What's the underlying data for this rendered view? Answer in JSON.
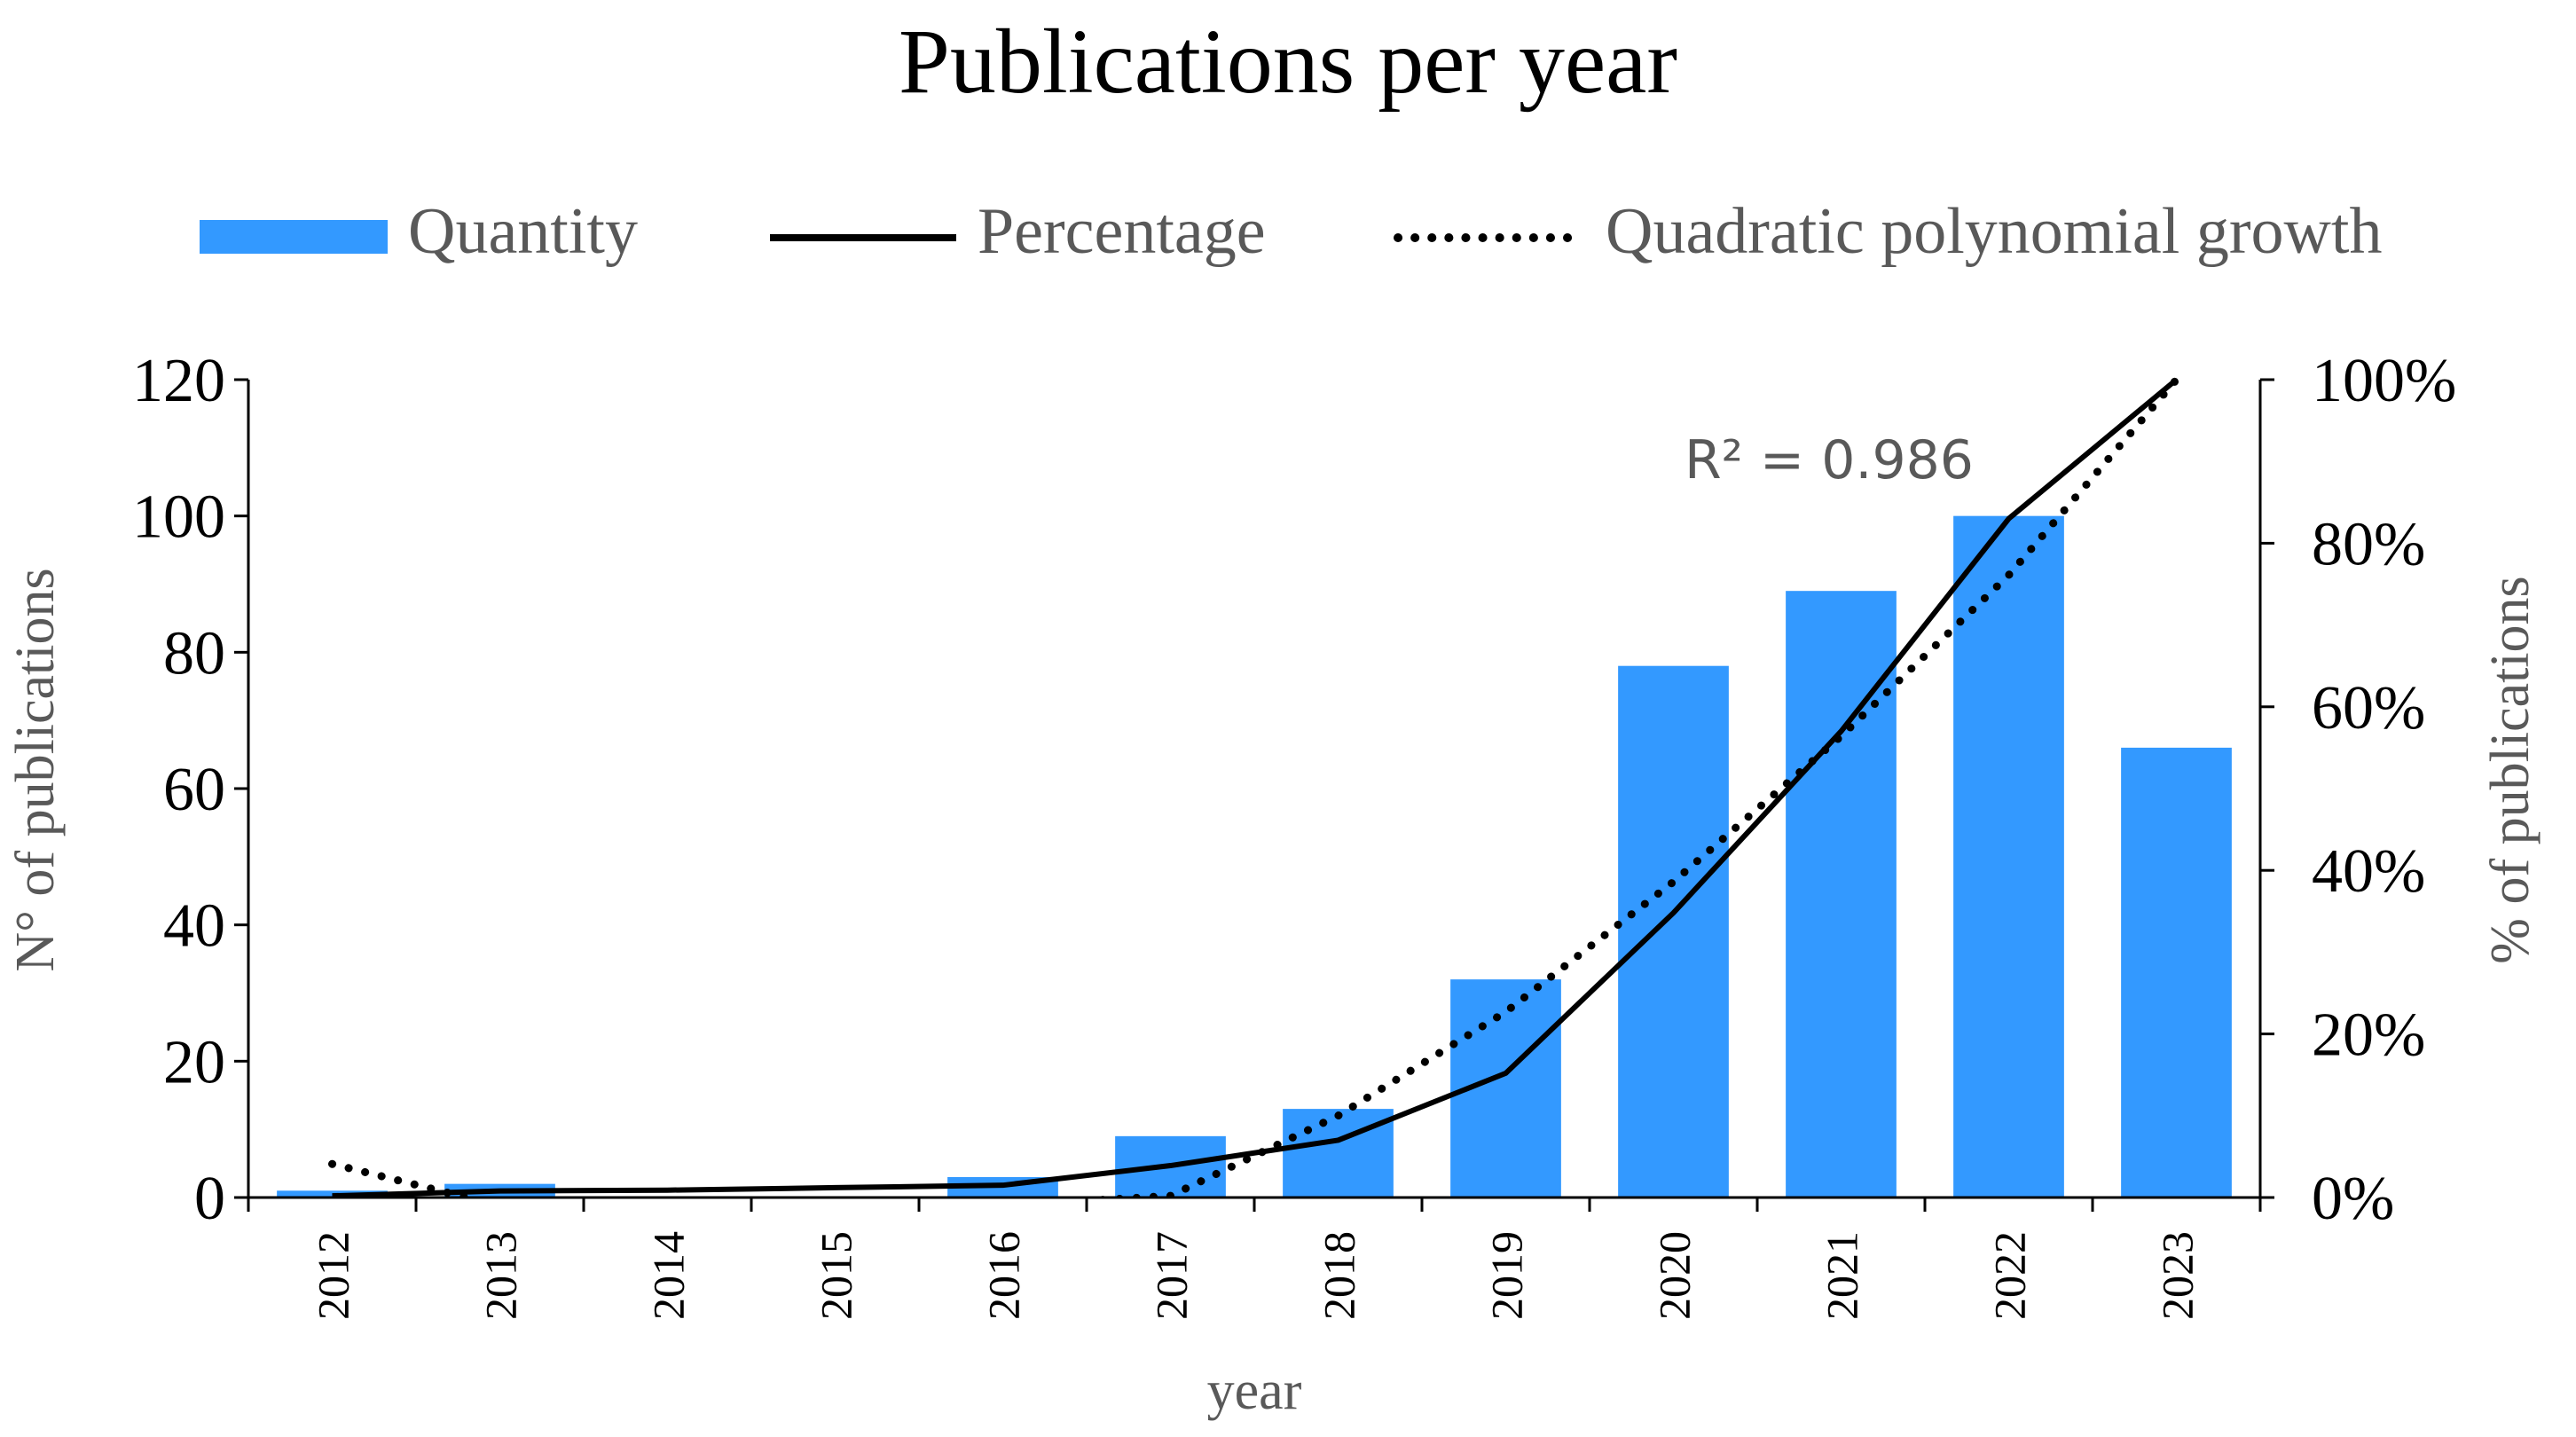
{
  "chart_data": {
    "type": "bar",
    "title": "Publications per year",
    "xlabel": "year",
    "ylabel": "N° of publications",
    "y2label": "% of publications",
    "categories": [
      "2012",
      "2013",
      "2014",
      "2015",
      "2016",
      "2017",
      "2018",
      "2019",
      "2020",
      "2021",
      "2022",
      "2023"
    ],
    "series": [
      {
        "name": "Quantity",
        "type": "bar",
        "axis": "left",
        "color": "#3399ff",
        "values": [
          1,
          2,
          0,
          0,
          3,
          9,
          13,
          32,
          78,
          89,
          100,
          66
        ]
      },
      {
        "name": "Percentage",
        "type": "line",
        "axis": "right",
        "color": "#000000",
        "values": [
          0.2,
          0.8,
          0.9,
          1.2,
          1.5,
          3.9,
          7.0,
          15.2,
          34.8,
          57.0,
          83.0,
          100.0
        ]
      },
      {
        "name": "Quadratic polynomial growth",
        "type": "trendline",
        "style": "dotted",
        "axis": "right",
        "color": "#000000",
        "values": [
          4.1,
          -1.0,
          -4.0,
          -4.0,
          -1.0,
          0.2,
          10.0,
          22.7,
          38.6,
          56.4,
          76.1,
          100.0
        ]
      }
    ],
    "annotation": "R² = 0.986",
    "ylim": [
      0,
      120
    ],
    "yticks": [
      "0",
      "20",
      "40",
      "60",
      "80",
      "100",
      "120"
    ],
    "y2lim": [
      0,
      100
    ],
    "y2ticks": [
      "0%",
      "20%",
      "40%",
      "60%",
      "80%",
      "100%"
    ],
    "legend": "top",
    "grid": false
  }
}
